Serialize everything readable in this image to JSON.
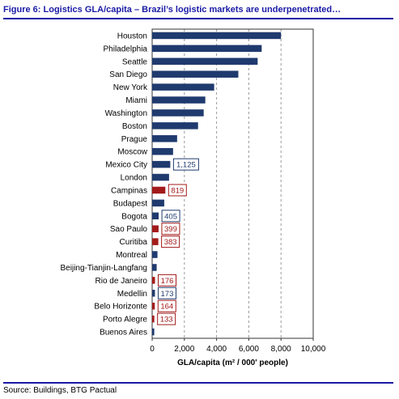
{
  "figure": {
    "title": "Figure 6: Logistics GLA/capita – Brazil’s logistic markets are underpenetrated…",
    "source": "Source: Buildings, BTG Pactual"
  },
  "colors": {
    "accent": "#1a1aa6",
    "bar_default": "#1f3a6e",
    "bar_brazil": "#a31a1a",
    "grid": "#9a9a9a"
  },
  "chart_data": {
    "type": "bar",
    "orientation": "horizontal",
    "title": "",
    "xlabel": "GLA/capita (m² / 000' people)",
    "ylabel": "",
    "xlim": [
      0,
      10000
    ],
    "xticks": [
      0,
      2000,
      4000,
      6000,
      8000,
      10000
    ],
    "xtick_labels": [
      "0",
      "2,000",
      "4,000",
      "6,000",
      "8,000",
      "10,000"
    ],
    "grid": "vertical dashed",
    "bars": [
      {
        "category": "Houston",
        "value": 8000,
        "group": "default",
        "label": ""
      },
      {
        "category": "Philadelphia",
        "value": 6800,
        "group": "default",
        "label": ""
      },
      {
        "category": "Seattle",
        "value": 6550,
        "group": "default",
        "label": ""
      },
      {
        "category": "San Diego",
        "value": 5350,
        "group": "default",
        "label": ""
      },
      {
        "category": "New York",
        "value": 3850,
        "group": "default",
        "label": ""
      },
      {
        "category": "Miami",
        "value": 3300,
        "group": "default",
        "label": ""
      },
      {
        "category": "Washington",
        "value": 3200,
        "group": "default",
        "label": ""
      },
      {
        "category": "Boston",
        "value": 2850,
        "group": "default",
        "label": ""
      },
      {
        "category": "Prague",
        "value": 1550,
        "group": "default",
        "label": ""
      },
      {
        "category": "Moscow",
        "value": 1300,
        "group": "default",
        "label": ""
      },
      {
        "category": "Mexico City",
        "value": 1125,
        "group": "default",
        "label": "1,125"
      },
      {
        "category": "London",
        "value": 1050,
        "group": "default",
        "label": ""
      },
      {
        "category": "Campinas",
        "value": 819,
        "group": "brazil",
        "label": "819"
      },
      {
        "category": "Budapest",
        "value": 750,
        "group": "default",
        "label": ""
      },
      {
        "category": "Bogota",
        "value": 405,
        "group": "default",
        "label": "405"
      },
      {
        "category": "Sao Paulo",
        "value": 399,
        "group": "brazil",
        "label": "399"
      },
      {
        "category": "Curitiba",
        "value": 383,
        "group": "brazil",
        "label": "383"
      },
      {
        "category": "Montreal",
        "value": 330,
        "group": "default",
        "label": ""
      },
      {
        "category": "Beijing-Tianjin-Langfang",
        "value": 280,
        "group": "default",
        "label": ""
      },
      {
        "category": "Rio de Janeiro",
        "value": 176,
        "group": "brazil",
        "label": "176"
      },
      {
        "category": "Medellin",
        "value": 173,
        "group": "default",
        "label": "173"
      },
      {
        "category": "Belo Horizonte",
        "value": 164,
        "group": "brazil",
        "label": "164"
      },
      {
        "category": "Porto Alegre",
        "value": 133,
        "group": "brazil",
        "label": "133"
      },
      {
        "category": "Buenos Aires",
        "value": 130,
        "group": "default",
        "label": ""
      }
    ]
  }
}
